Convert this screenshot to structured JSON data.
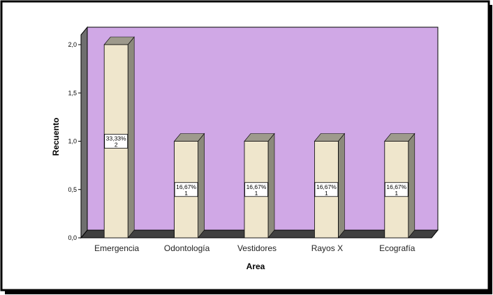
{
  "chart_data": {
    "type": "bar",
    "style": "3d",
    "categories": [
      "Emergencia",
      "Odontología",
      "Vestidores",
      "Rayos X",
      "Ecografía"
    ],
    "values": [
      2,
      1,
      1,
      1,
      1
    ],
    "data_labels": [
      [
        "33,33%",
        "2"
      ],
      [
        "16,67%",
        "1"
      ],
      [
        "16,67%",
        "1"
      ],
      [
        "16,67%",
        "1"
      ],
      [
        "16,67%",
        "1"
      ]
    ],
    "xlabel": "Area",
    "ylabel": "Recuento",
    "ylim": [
      0,
      2
    ],
    "yticks": [
      "0,0",
      "0,5",
      "1,0",
      "1,5",
      "2,0"
    ],
    "grid": false,
    "colors": {
      "plot_background": "#d0a8e6",
      "floor": "#404040",
      "left_wall": "#6f6f6f",
      "bar_front": "#efe6cc",
      "bar_side": "#8c8a7c",
      "bar_top": "#9e9a8c",
      "border": "#000000"
    }
  }
}
